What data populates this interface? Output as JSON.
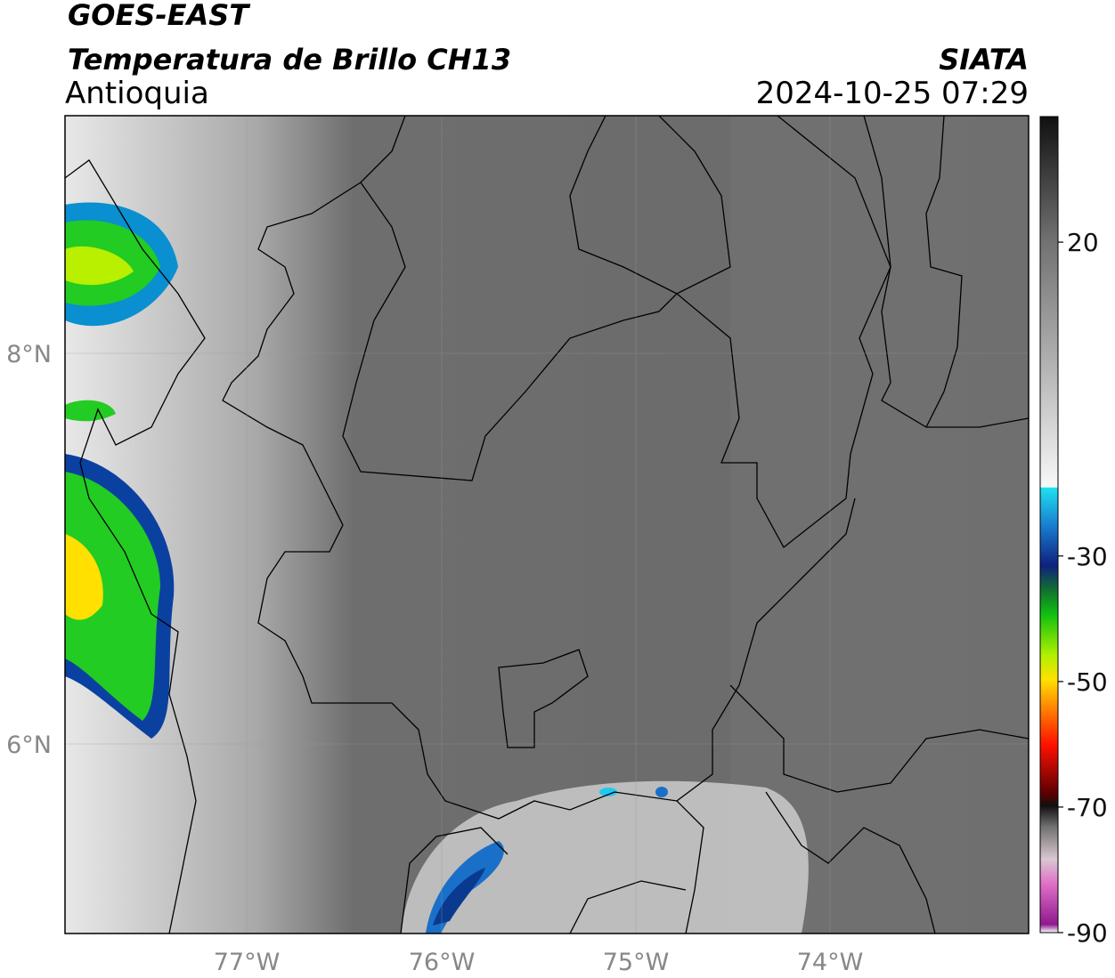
{
  "header": {
    "title": "GOES-EAST",
    "subtitle": "Temperatura de Brillo CH13",
    "source": "SIATA",
    "region": "Antioquia",
    "datetime": "2024-10-25 07:29"
  },
  "map": {
    "lat_labels": [
      "8°N",
      "6°N"
    ],
    "lon_labels": [
      "77°W",
      "76°W",
      "75°W",
      "74°W"
    ]
  },
  "colorbar": {
    "ylim": [
      -90,
      40
    ],
    "yticks": [
      20,
      -30,
      -50,
      -70,
      -90
    ]
  }
}
